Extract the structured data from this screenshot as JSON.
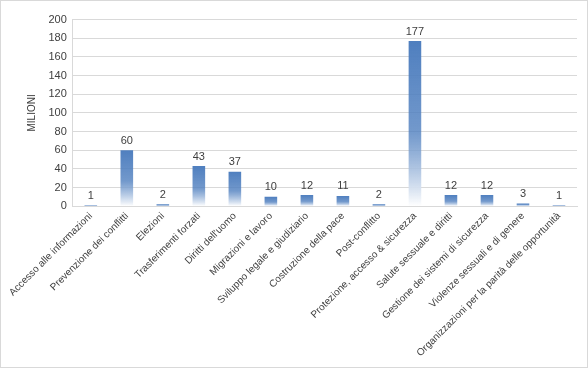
{
  "chart_data": {
    "type": "bar",
    "y_label": "MILIONI",
    "categories": [
      "Accesso alle informazioni",
      "Prevenzione dei conflitti",
      "Elezioni",
      "Trasferimenti forzati",
      "Diritti dell'uomo",
      "Migrazioni e lavoro",
      "Sviluppo legale e giudiziario",
      "Costruzione della pace",
      "Post-conflitto",
      "Protezione, accesso & sicurezza",
      "Salute sessuale e diritti",
      "Gestione dei sistemi di sicurezza",
      "Violenze sessuali e di genere",
      "Organizzazioni per la parità delle opportunità"
    ],
    "values": [
      1,
      60,
      2,
      43,
      37,
      10,
      12,
      11,
      2,
      177,
      12,
      12,
      3,
      1
    ],
    "color": "#4f7fbf",
    "ylim": [
      0,
      200
    ],
    "yticks": [
      0,
      20,
      40,
      60,
      80,
      100,
      120,
      140,
      160,
      180,
      200
    ],
    "grid": true,
    "data_labels": true
  }
}
